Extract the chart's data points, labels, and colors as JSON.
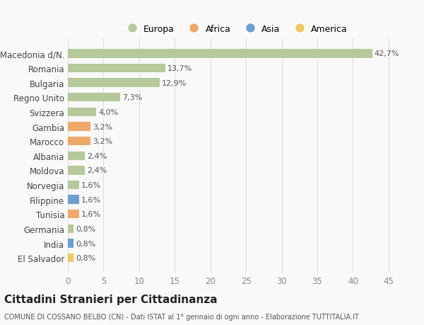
{
  "categories": [
    "El Salvador",
    "India",
    "Germania",
    "Tunisia",
    "Filippine",
    "Norvegia",
    "Moldova",
    "Albania",
    "Marocco",
    "Gambia",
    "Svizzera",
    "Regno Unito",
    "Bulgaria",
    "Romania",
    "Macedonia d/N."
  ],
  "values": [
    0.8,
    0.8,
    0.8,
    1.6,
    1.6,
    1.6,
    2.4,
    2.4,
    3.2,
    3.2,
    4.0,
    7.3,
    12.9,
    13.7,
    42.7
  ],
  "colors": [
    "#f0c75e",
    "#6b9fd4",
    "#b5c99a",
    "#f0a868",
    "#6b9fd4",
    "#b5c99a",
    "#b5c99a",
    "#b5c99a",
    "#f0a868",
    "#f0a868",
    "#b5c99a",
    "#b5c99a",
    "#b5c99a",
    "#b5c99a",
    "#b5c99a"
  ],
  "labels": [
    "0,8%",
    "0,8%",
    "0,8%",
    "1,6%",
    "1,6%",
    "1,6%",
    "2,4%",
    "2,4%",
    "3,2%",
    "3,2%",
    "4,0%",
    "7,3%",
    "12,9%",
    "13,7%",
    "42,7%"
  ],
  "legend_names": [
    "Europa",
    "Africa",
    "Asia",
    "America"
  ],
  "legend_colors": [
    "#b5c99a",
    "#f0a868",
    "#6b9fd4",
    "#f0c75e"
  ],
  "xlim": [
    0,
    47
  ],
  "xticks": [
    0,
    5,
    10,
    15,
    20,
    25,
    30,
    35,
    40,
    45
  ],
  "title": "Cittadini Stranieri per Cittadinanza",
  "subtitle": "COMUNE DI COSSANO BELBO (CN) - Dati ISTAT al 1° gennaio di ogni anno - Elaborazione TUTTITALIA.IT",
  "bg_color": "#f9f9f9",
  "grid_color": "#dddddd",
  "bar_height": 0.6
}
